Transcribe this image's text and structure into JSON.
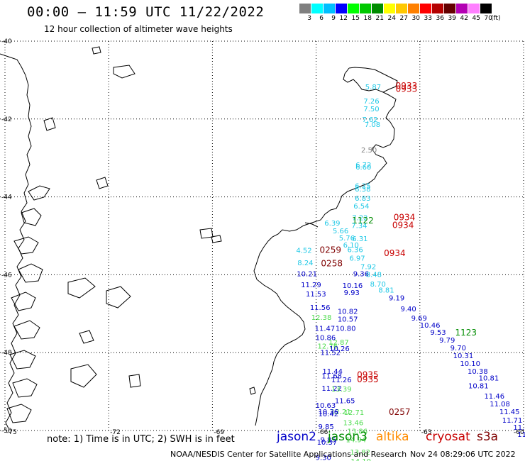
{
  "header": {
    "title": "00:00 – 11:59 UTC 11/22/2022",
    "subtitle": "12 hour collection of altimeter wave heights"
  },
  "scale": {
    "unit": "(ft)",
    "bins": [
      {
        "label": "3",
        "color": "#7f7f7f"
      },
      {
        "label": "6",
        "color": "#00ffff"
      },
      {
        "label": "9",
        "color": "#00bfff"
      },
      {
        "label": "12",
        "color": "#0000ff"
      },
      {
        "label": "15",
        "color": "#00ff00"
      },
      {
        "label": "18",
        "color": "#00c800"
      },
      {
        "label": "21",
        "color": "#008c00"
      },
      {
        "label": "24",
        "color": "#ffff00"
      },
      {
        "label": "27",
        "color": "#ffc800"
      },
      {
        "label": "30",
        "color": "#ff8000"
      },
      {
        "label": "33",
        "color": "#ff0000"
      },
      {
        "label": "36",
        "color": "#b40000"
      },
      {
        "label": "39",
        "color": "#640000"
      },
      {
        "label": "42",
        "color": "#b400b4"
      },
      {
        "label": "45",
        "color": "#ff80ff"
      },
      {
        "label": "70",
        "color": "#000000"
      }
    ]
  },
  "axes": {
    "lat_labels": [
      "-40",
      "-42",
      "-44",
      "-46",
      "-48",
      "-50"
    ],
    "lon_labels": [
      "-75",
      "-72",
      "-69",
      "-66",
      "-63",
      "-60"
    ]
  },
  "colors": {
    "jason2": "#0000c8",
    "jason3": "#008c00",
    "altika": "#ff8c00",
    "cryosat": "#c80000",
    "s3a": "#7f0000",
    "grey": "#7f7f7f",
    "cyan": "#1ec8e6",
    "lightgreen": "#50dc50"
  },
  "observations": [
    {
      "text": "5.87",
      "color": "#1ec8e6",
      "lon": -64.58,
      "lat": -41.24
    },
    {
      "text": "0933",
      "color": "#c80000",
      "lon": -63.7,
      "lat": -41.22
    },
    {
      "text": "0933",
      "color": "#c80000",
      "lon": -63.7,
      "lat": -41.3
    },
    {
      "text": "7.26",
      "color": "#1ec8e6",
      "lon": -64.63,
      "lat": -41.6
    },
    {
      "text": "7.50",
      "color": "#1ec8e6",
      "lon": -64.63,
      "lat": -41.8
    },
    {
      "text": "7.62",
      "color": "#1ec8e6",
      "lon": -64.67,
      "lat": -42.08
    },
    {
      "text": "7.08",
      "color": "#1ec8e6",
      "lon": -64.6,
      "lat": -42.2
    },
    {
      "text": "2.50",
      "color": "#7f7f7f",
      "lon": -64.7,
      "lat": -42.86
    },
    {
      "text": "6.72",
      "color": "#1ec8e6",
      "lon": -64.86,
      "lat": -43.24
    },
    {
      "text": "6.60",
      "color": "#1ec8e6",
      "lon": -64.86,
      "lat": -43.3
    },
    {
      "text": "6.25",
      "color": "#1ec8e6",
      "lon": -64.88,
      "lat": -43.78
    },
    {
      "text": "6.38",
      "color": "#1ec8e6",
      "lon": -64.88,
      "lat": -43.86
    },
    {
      "text": "6.83",
      "color": "#1ec8e6",
      "lon": -64.88,
      "lat": -44.1
    },
    {
      "text": "6.54",
      "color": "#1ec8e6",
      "lon": -64.92,
      "lat": -44.3
    },
    {
      "text": "7.22",
      "color": "#1ec8e6",
      "lon": -64.96,
      "lat": -44.6
    },
    {
      "text": "1122",
      "color": "#008c00",
      "lon": -64.96,
      "lat": -44.68
    },
    {
      "text": "0934",
      "color": "#c80000",
      "lon": -63.76,
      "lat": -44.6
    },
    {
      "text": "0934",
      "color": "#c80000",
      "lon": -63.8,
      "lat": -44.8
    },
    {
      "text": "6.39",
      "color": "#1ec8e6",
      "lon": -65.76,
      "lat": -44.74
    },
    {
      "text": "7.34",
      "color": "#1ec8e6",
      "lon": -64.98,
      "lat": -44.8
    },
    {
      "text": "5.66",
      "color": "#1ec8e6",
      "lon": -65.52,
      "lat": -44.94
    },
    {
      "text": "5.76",
      "color": "#1ec8e6",
      "lon": -65.34,
      "lat": -45.12
    },
    {
      "text": "6.31",
      "color": "#1ec8e6",
      "lon": -64.96,
      "lat": -45.14
    },
    {
      "text": "6.10",
      "color": "#1ec8e6",
      "lon": -65.22,
      "lat": -45.3
    },
    {
      "text": "4.52",
      "color": "#1ec8e6",
      "lon": -66.58,
      "lat": -45.44
    },
    {
      "text": "0259",
      "color": "#7f0000",
      "lon": -65.9,
      "lat": -45.44
    },
    {
      "text": "6.36",
      "color": "#1ec8e6",
      "lon": -65.1,
      "lat": -45.42
    },
    {
      "text": "0934",
      "color": "#c80000",
      "lon": -64.04,
      "lat": -45.52
    },
    {
      "text": "6.97",
      "color": "#1ec8e6",
      "lon": -65.04,
      "lat": -45.64
    },
    {
      "text": "8.24",
      "color": "#1ec8e6",
      "lon": -66.54,
      "lat": -45.76
    },
    {
      "text": "0258",
      "color": "#7f0000",
      "lon": -65.86,
      "lat": -45.78
    },
    {
      "text": "7.92",
      "color": "#1ec8e6",
      "lon": -64.72,
      "lat": -45.86
    },
    {
      "text": "10.21",
      "color": "#0000c8",
      "lon": -66.56,
      "lat": -46.04
    },
    {
      "text": "9.36",
      "color": "#0000c8",
      "lon": -64.93,
      "lat": -46.04
    },
    {
      "text": "8.48",
      "color": "#1ec8e6",
      "lon": -64.56,
      "lat": -46.06
    },
    {
      "text": "11.29",
      "color": "#0000c8",
      "lon": -66.44,
      "lat": -46.32
    },
    {
      "text": "10.16",
      "color": "#0000c8",
      "lon": -65.24,
      "lat": -46.34
    },
    {
      "text": "8.70",
      "color": "#1ec8e6",
      "lon": -64.44,
      "lat": -46.3
    },
    {
      "text": "8.81",
      "color": "#1ec8e6",
      "lon": -64.2,
      "lat": -46.46
    },
    {
      "text": "11.53",
      "color": "#0000c8",
      "lon": -66.3,
      "lat": -46.56
    },
    {
      "text": "9.93",
      "color": "#0000c8",
      "lon": -65.2,
      "lat": -46.52
    },
    {
      "text": "9.19",
      "color": "#0000c8",
      "lon": -63.9,
      "lat": -46.66
    },
    {
      "text": "11.56",
      "color": "#0000c8",
      "lon": -66.18,
      "lat": -46.9
    },
    {
      "text": "10.82",
      "color": "#0000c8",
      "lon": -65.38,
      "lat": -47.0
    },
    {
      "text": "9.40",
      "color": "#0000c8",
      "lon": -63.56,
      "lat": -46.94
    },
    {
      "text": "12.38",
      "color": "#50dc50",
      "lon": -66.14,
      "lat": -47.16
    },
    {
      "text": "10.57",
      "color": "#0000c8",
      "lon": -65.38,
      "lat": -47.2
    },
    {
      "text": "9.69",
      "color": "#0000c8",
      "lon": -63.25,
      "lat": -47.18
    },
    {
      "text": "11.47",
      "color": "#0000c8",
      "lon": -66.04,
      "lat": -47.44
    },
    {
      "text": "10.80",
      "color": "#0000c8",
      "lon": -65.44,
      "lat": -47.44
    },
    {
      "text": "10.46",
      "color": "#0000c8",
      "lon": -63.0,
      "lat": -47.36
    },
    {
      "text": "9.53",
      "color": "#0000c8",
      "lon": -62.7,
      "lat": -47.54
    },
    {
      "text": "1123",
      "color": "#008c00",
      "lon": -61.98,
      "lat": -47.56
    },
    {
      "text": "10.86",
      "color": "#0000c8",
      "lon": -66.02,
      "lat": -47.68
    },
    {
      "text": "9.79",
      "color": "#0000c8",
      "lon": -62.44,
      "lat": -47.74
    },
    {
      "text": "12.87",
      "color": "#50dc50",
      "lon": -65.64,
      "lat": -47.8
    },
    {
      "text": "12.76",
      "color": "#50dc50",
      "lon": -65.96,
      "lat": -47.9
    },
    {
      "text": "10.26",
      "color": "#0000c8",
      "lon": -65.62,
      "lat": -47.96
    },
    {
      "text": "11.52",
      "color": "#0000c8",
      "lon": -65.88,
      "lat": -48.06
    },
    {
      "text": "9.70",
      "color": "#0000c8",
      "lon": -62.12,
      "lat": -47.94
    },
    {
      "text": "10.31",
      "color": "#0000c8",
      "lon": -62.04,
      "lat": -48.14
    },
    {
      "text": "10.10",
      "color": "#0000c8",
      "lon": -61.84,
      "lat": -48.34
    },
    {
      "text": "11.44",
      "color": "#0000c8",
      "lon": -65.82,
      "lat": -48.54
    },
    {
      "text": "10.38",
      "color": "#0000c8",
      "lon": -61.62,
      "lat": -48.54
    },
    {
      "text": "11.68",
      "color": "#0000c8",
      "lon": -65.84,
      "lat": -48.66
    },
    {
      "text": "0935",
      "color": "#c80000",
      "lon": -64.82,
      "lat": -48.64
    },
    {
      "text": "0935",
      "color": "#c80000",
      "lon": -64.82,
      "lat": -48.76
    },
    {
      "text": "11.26",
      "color": "#0000c8",
      "lon": -65.56,
      "lat": -48.76
    },
    {
      "text": "10.81",
      "color": "#0000c8",
      "lon": -61.3,
      "lat": -48.72
    },
    {
      "text": "10.81",
      "color": "#0000c8",
      "lon": -61.6,
      "lat": -48.92
    },
    {
      "text": "11.22",
      "color": "#0000c8",
      "lon": -65.84,
      "lat": -48.98
    },
    {
      "text": "13.39",
      "color": "#50dc50",
      "lon": -65.56,
      "lat": -49.0
    },
    {
      "text": "11.46",
      "color": "#0000c8",
      "lon": -61.14,
      "lat": -49.18
    },
    {
      "text": "11.65",
      "color": "#0000c8",
      "lon": -65.46,
      "lat": -49.3
    },
    {
      "text": "11.08",
      "color": "#0000c8",
      "lon": -60.98,
      "lat": -49.38
    },
    {
      "text": "10.63",
      "color": "#0000c8",
      "lon": -66.02,
      "lat": -49.42
    },
    {
      "text": "12.21",
      "color": "#50dc50",
      "lon": -65.58,
      "lat": -49.58
    },
    {
      "text": "12.71",
      "color": "#50dc50",
      "lon": -65.2,
      "lat": -49.6
    },
    {
      "text": "10.36",
      "color": "#0000c8",
      "lon": -65.94,
      "lat": -49.58
    },
    {
      "text": "10.42",
      "color": "#0000c8",
      "lon": -65.94,
      "lat": -49.64
    },
    {
      "text": "0257",
      "color": "#7f0000",
      "lon": -63.9,
      "lat": -49.6
    },
    {
      "text": "11.45",
      "color": "#0000c8",
      "lon": -60.7,
      "lat": -49.58
    },
    {
      "text": "13.46",
      "color": "#50dc50",
      "lon": -65.22,
      "lat": -49.86
    },
    {
      "text": "11.71",
      "color": "#0000c8",
      "lon": -60.62,
      "lat": -49.8
    },
    {
      "text": "9.85",
      "color": "#0000c8",
      "lon": -65.94,
      "lat": -49.96
    },
    {
      "text": "11.60",
      "color": "#0000c8",
      "lon": -60.3,
      "lat": -49.98
    },
    {
      "text": "13.86",
      "color": "#50dc50",
      "lon": -65.1,
      "lat": -50.08
    },
    {
      "text": "11.58",
      "color": "#0000c8",
      "lon": -60.18,
      "lat": -50.16
    },
    {
      "text": "9.85",
      "color": "#0000c8",
      "lon": -65.88,
      "lat": -50.3
    },
    {
      "text": "10.37",
      "color": "#0000c8",
      "lon": -65.98,
      "lat": -50.36
    },
    {
      "text": "14.94",
      "color": "#50dc50",
      "lon": -65.14,
      "lat": -50.3
    },
    {
      "text": "11.25",
      "color": "#0000c8",
      "lon": -59.9,
      "lat": -50.3
    },
    {
      "text": "12.",
      "color": "#50dc50",
      "lon": -59.65,
      "lat": -50.46
    },
    {
      "text": "13.82",
      "color": "#50dc50",
      "lon": -65.02,
      "lat": -50.62
    },
    {
      "text": "9.30",
      "color": "#0000c8",
      "lon": -66.02,
      "lat": -50.76
    },
    {
      "text": "14.10",
      "color": "#50dc50",
      "lon": -65.0,
      "lat": -50.86
    }
  ],
  "note": "note:  1) Time is in UTC; 2) SWH is in feet",
  "legend": [
    {
      "label": "jason2",
      "color": "#0000c8"
    },
    {
      "label": "jason3",
      "color": "#008c00"
    },
    {
      "label": "altika",
      "color": "#ff8c00"
    },
    {
      "label": "cryosat",
      "color": "#c80000"
    },
    {
      "label": "s3a",
      "color": "#7f0000"
    }
  ],
  "footer": {
    "credit": "NOAA/NESDIS Center for Satellite Applications and Research",
    "timestamp": "Nov 24 08:29:06 UTC 2022"
  }
}
